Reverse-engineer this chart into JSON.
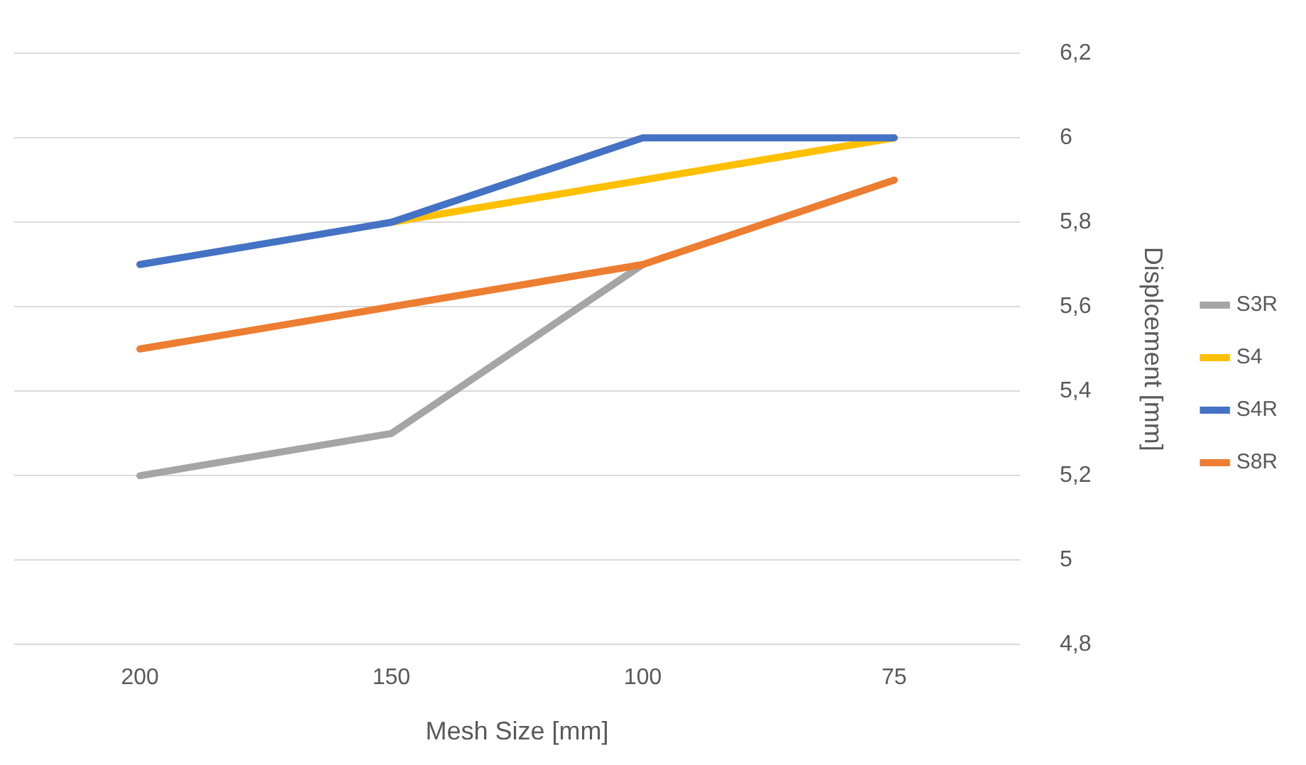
{
  "chart_data": {
    "type": "line",
    "xlabel": "Mesh Size [mm]",
    "ylabel": "Displcement [mm]",
    "categories": [
      "200",
      "150",
      "100",
      "75"
    ],
    "series": [
      {
        "name": "S3R",
        "color": "#a5a5a5",
        "values": [
          5.2,
          5.3,
          5.7,
          null
        ]
      },
      {
        "name": "S4",
        "color": "#ffc000",
        "values": [
          null,
          5.8,
          5.9,
          6.0
        ]
      },
      {
        "name": "S4R",
        "color": "#4472c4",
        "values": [
          5.7,
          5.8,
          6.0,
          6.0
        ]
      },
      {
        "name": "S8R",
        "color": "#ed7d31",
        "values": [
          5.5,
          5.6,
          5.7,
          5.9
        ]
      }
    ],
    "ylim": [
      4.8,
      6.2
    ],
    "yticks": [
      {
        "value": 4.8,
        "label": "4,8"
      },
      {
        "value": 5,
        "label": "5"
      },
      {
        "value": 5.2,
        "label": "5,2"
      },
      {
        "value": 5.4,
        "label": "5,4"
      },
      {
        "value": 5.6,
        "label": "5,6"
      },
      {
        "value": 5.8,
        "label": "5,8"
      },
      {
        "value": 6,
        "label": "6"
      },
      {
        "value": 6.2,
        "label": "6,2"
      }
    ],
    "grid": "y",
    "legend": "right",
    "marker": "none",
    "line_style": "solid"
  }
}
